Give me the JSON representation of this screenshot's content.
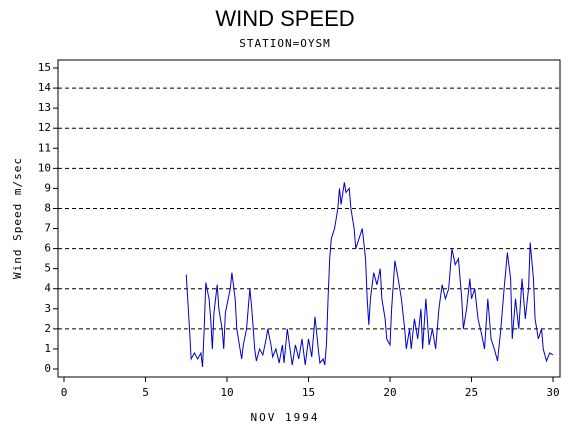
{
  "chart_data": {
    "type": "line",
    "title": "WIND SPEED",
    "subtitle": "STATION=OYSM",
    "x_label": "NOV 1994",
    "y_label": "Wind Speed m/sec",
    "xlim": [
      0,
      30
    ],
    "xticks": [
      0,
      5,
      10,
      15,
      20,
      25,
      30
    ],
    "ylim": [
      0,
      15
    ],
    "yticks": [
      0,
      1,
      2,
      3,
      4,
      5,
      6,
      7,
      8,
      9,
      10,
      11,
      12,
      13,
      14,
      15
    ],
    "grid_lines": [
      2,
      4,
      6,
      8,
      10,
      12,
      14
    ],
    "series": [
      {
        "name": "Wind Speed",
        "color": "#0000cc",
        "x": [
          7.5,
          7.7,
          7.8,
          8.0,
          8.2,
          8.4,
          8.5,
          8.6,
          8.7,
          8.9,
          9.0,
          9.1,
          9.2,
          9.4,
          9.5,
          9.7,
          9.8,
          9.9,
          10.0,
          10.2,
          10.3,
          10.5,
          10.6,
          10.8,
          10.9,
          11.0,
          11.2,
          11.4,
          11.5,
          11.7,
          11.8,
          12.0,
          12.2,
          12.4,
          12.5,
          12.7,
          12.8,
          13.0,
          13.2,
          13.4,
          13.5,
          13.7,
          13.9,
          14.0,
          14.2,
          14.4,
          14.6,
          14.8,
          15.0,
          15.2,
          15.4,
          15.6,
          15.7,
          15.9,
          16.0,
          16.1,
          16.2,
          16.3,
          16.4,
          16.6,
          16.8,
          16.9,
          17.0,
          17.2,
          17.3,
          17.5,
          17.6,
          17.8,
          17.9,
          18.1,
          18.3,
          18.5,
          18.6,
          18.7,
          18.8,
          19.0,
          19.2,
          19.4,
          19.5,
          19.7,
          19.8,
          20.0,
          20.1,
          20.3,
          20.5,
          20.7,
          20.9,
          21.0,
          21.2,
          21.3,
          21.5,
          21.7,
          21.9,
          22.0,
          22.2,
          22.4,
          22.6,
          22.8,
          23.0,
          23.2,
          23.4,
          23.6,
          23.8,
          24.0,
          24.2,
          24.4,
          24.5,
          24.7,
          24.9,
          25.0,
          25.2,
          25.4,
          25.6,
          25.8,
          26.0,
          26.2,
          26.4,
          26.6,
          26.8,
          27.0,
          27.2,
          27.4,
          27.5,
          27.7,
          27.9,
          28.1,
          28.3,
          28.5,
          28.6,
          28.8,
          28.9,
          29.1,
          29.3,
          29.4,
          29.6,
          29.8,
          30.0
        ],
        "values": [
          4.7,
          2.0,
          0.5,
          0.8,
          0.5,
          0.8,
          0.1,
          2.0,
          4.3,
          3.5,
          2.5,
          1.0,
          2.8,
          4.2,
          3.0,
          2.0,
          1.0,
          2.8,
          3.2,
          4.0,
          4.8,
          3.5,
          2.0,
          1.0,
          0.5,
          1.2,
          2.0,
          4.0,
          3.2,
          1.0,
          0.4,
          1.0,
          0.7,
          1.5,
          2.0,
          1.2,
          0.6,
          1.0,
          0.3,
          1.2,
          0.3,
          2.0,
          0.8,
          0.2,
          1.2,
          0.5,
          1.5,
          0.2,
          1.5,
          0.6,
          2.6,
          1.0,
          0.3,
          0.5,
          0.2,
          1.2,
          3.5,
          5.5,
          6.5,
          7.0,
          8.0,
          9.0,
          8.2,
          9.3,
          8.8,
          9.0,
          8.0,
          7.0,
          6.0,
          6.5,
          7.0,
          5.5,
          3.5,
          2.2,
          3.5,
          4.8,
          4.2,
          5.0,
          3.5,
          2.5,
          1.5,
          1.2,
          3.0,
          5.4,
          4.5,
          3.5,
          2.0,
          1.0,
          2.0,
          1.0,
          2.5,
          1.5,
          3.0,
          1.0,
          3.5,
          1.2,
          2.0,
          1.0,
          3.0,
          4.2,
          3.5,
          4.0,
          6.0,
          5.2,
          5.5,
          3.5,
          2.0,
          3.0,
          4.5,
          3.5,
          4.0,
          2.5,
          1.8,
          1.0,
          3.5,
          1.5,
          1.0,
          0.4,
          2.0,
          4.0,
          5.8,
          4.5,
          1.5,
          3.5,
          2.0,
          4.5,
          2.5,
          4.0,
          6.3,
          4.5,
          2.5,
          1.5,
          2.0,
          1.0,
          0.4,
          0.8,
          0.7
        ]
      }
    ]
  }
}
